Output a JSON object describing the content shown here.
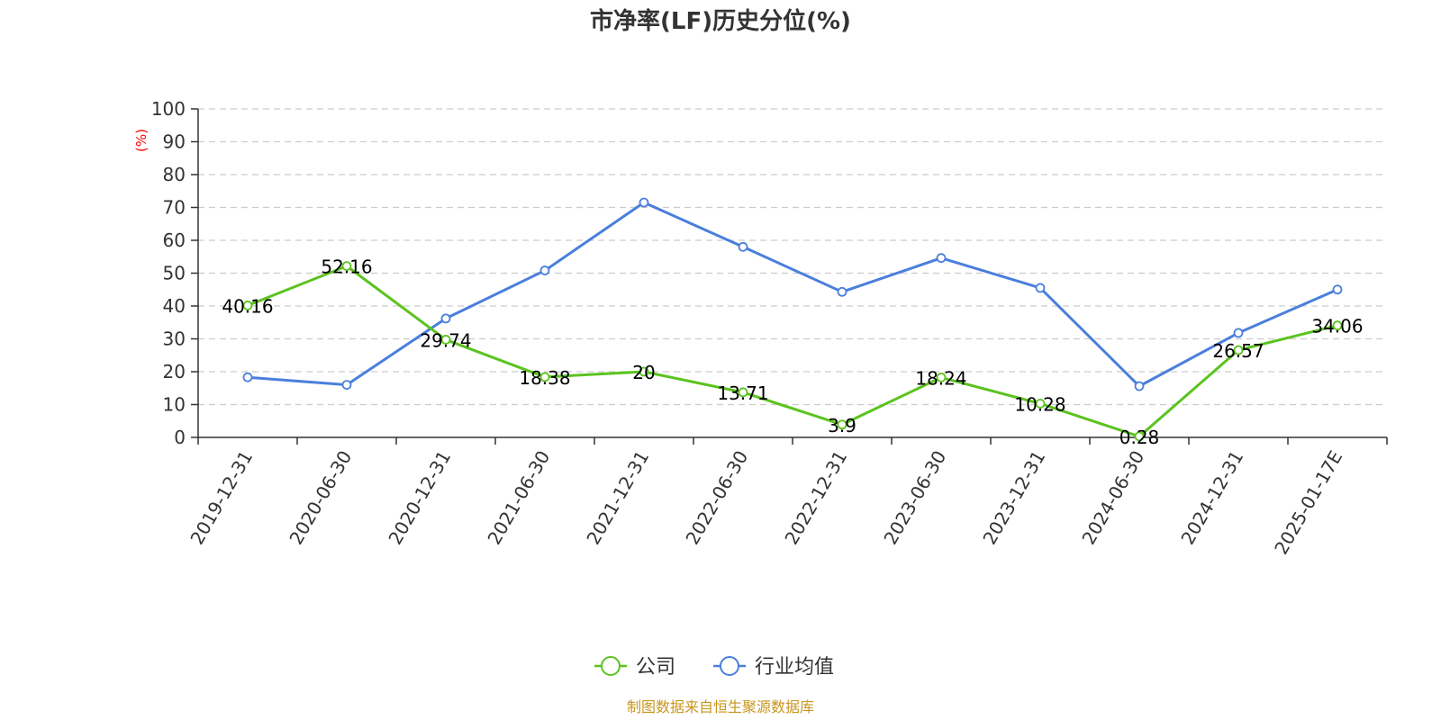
{
  "chart_data": {
    "type": "line",
    "title": "市净率(LF)历史分位(%)",
    "ylabel": "(%)",
    "ylim": [
      0,
      100
    ],
    "yticks": [
      0,
      10,
      20,
      30,
      40,
      50,
      60,
      70,
      80,
      90,
      100
    ],
    "grid": true,
    "legend_position": "bottom-center",
    "categories": [
      "2019-12-31",
      "2020-06-30",
      "2020-12-31",
      "2021-06-30",
      "2021-12-31",
      "2022-06-30",
      "2022-12-31",
      "2023-06-30",
      "2023-12-31",
      "2024-06-30",
      "2024-12-31",
      "2025-01-17E"
    ],
    "series": [
      {
        "name": "公司",
        "color": "#5bc31e",
        "values": [
          40.16,
          52.16,
          29.74,
          18.38,
          20,
          13.71,
          3.9,
          18.24,
          10.28,
          0.28,
          26.57,
          34.06
        ],
        "labels": [
          "40.16",
          "52.16",
          "29.74",
          "18.38",
          "20",
          "13.71",
          "3.9",
          "18.24",
          "10.28",
          "0.28",
          "26.57",
          "34.06"
        ]
      },
      {
        "name": "行业均值",
        "color": "#4a7fdc",
        "values": [
          18.3,
          16.0,
          36.2,
          50.8,
          71.5,
          58.0,
          44.3,
          54.6,
          45.5,
          15.6,
          31.8,
          45.0
        ]
      }
    ],
    "source": "制图数据来自恒生聚源数据库"
  }
}
